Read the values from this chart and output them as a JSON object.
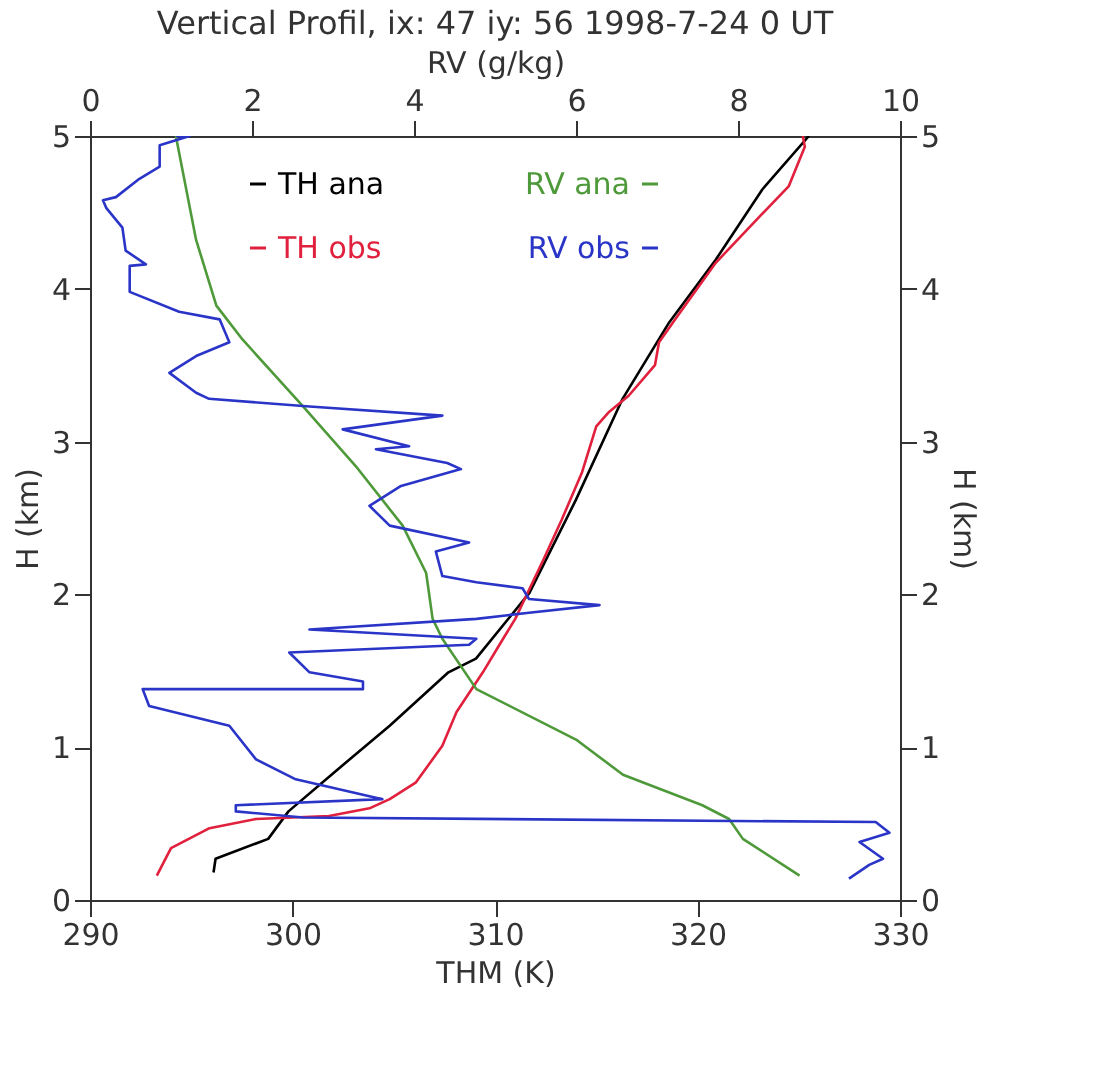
{
  "chart_data": {
    "type": "line",
    "title": "Vertical Profil, ix: 47 iy: 56   1998-7-24   0 UT",
    "xlabel": "THM (K)",
    "ylabel": "H (km)",
    "x2label": "RV (g/kg)",
    "y2label": "H (km)",
    "xlim": [
      290,
      330
    ],
    "xticks": [
      290,
      300,
      310,
      320,
      330
    ],
    "x2lim": [
      0,
      10
    ],
    "x2ticks": [
      0,
      2,
      4,
      6,
      8,
      10
    ],
    "ylim": [
      0,
      5
    ],
    "yticks": [
      0,
      1,
      2,
      3,
      4,
      5
    ],
    "y2lim": [
      0,
      5
    ],
    "y2ticks": [
      0,
      1,
      2,
      3,
      4,
      5
    ],
    "grid": false,
    "legend": "top",
    "marker": "none",
    "line_style": "solid",
    "series": [
      {
        "name": "TH ana",
        "color": "#000000",
        "x": [
          296.1,
          296.2,
          298.8,
          299.8,
          302.1,
          304.8,
          307.7,
          309.06,
          311.7,
          314.0,
          316.3,
          318.6,
          320.9,
          323.2,
          325.5
        ],
        "values": [
          0.18,
          0.27,
          0.4,
          0.58,
          0.84,
          1.14,
          1.49,
          1.58,
          2.01,
          2.62,
          3.28,
          3.78,
          4.19,
          4.65,
          5.0
        ]
      },
      {
        "name": "TH obs",
        "color": "#e0203c",
        "x": [
          293.3,
          294.0,
          295.9,
          298.2,
          301.8,
          303.8,
          304.8,
          306.1,
          307.4,
          308.1,
          309.4,
          310.4,
          311.0,
          312.4,
          313.3,
          314.3,
          315.0,
          315.6,
          316.6,
          317.9,
          318.1,
          318.9,
          320.9,
          322.9,
          324.5,
          325.3,
          325.2
        ],
        "values": [
          0.16,
          0.34,
          0.47,
          0.53,
          0.55,
          0.6,
          0.66,
          0.77,
          1.01,
          1.23,
          1.49,
          1.71,
          1.84,
          2.23,
          2.49,
          2.8,
          3.1,
          3.19,
          3.3,
          3.5,
          3.65,
          3.8,
          4.17,
          4.45,
          4.67,
          4.93,
          5.0
        ]
      },
      {
        "name": "RV ana",
        "color": "#4e9a3a",
        "axis": "x2",
        "x": [
          1.06,
          1.31,
          1.56,
          1.88,
          2.63,
          3.28,
          3.86,
          4.15,
          4.23,
          4.35,
          4.77,
          6.0,
          6.58,
          7.56,
          7.89,
          8.06,
          8.76
        ],
        "values": [
          5.0,
          4.32,
          3.89,
          3.67,
          3.23,
          2.84,
          2.45,
          2.14,
          1.84,
          1.71,
          1.38,
          1.05,
          0.82,
          0.62,
          0.53,
          0.4,
          0.16
        ]
      },
      {
        "name": "RV obs",
        "color": "#2a35c8",
        "axis": "x2",
        "x": [
          1.06,
          1.23,
          0.86,
          0.86,
          0.61,
          0.32,
          0.16,
          0.2,
          0.4,
          0.44,
          0.69,
          0.49,
          0.49,
          1.1,
          1.6,
          1.72,
          1.31,
          0.98,
          1.31,
          1.47,
          2.71,
          4.35,
          3.12,
          3.94,
          3.53,
          4.41,
          4.58,
          3.84,
          3.45,
          3.7,
          4.68,
          4.27,
          4.35,
          4.77,
          5.34,
          5.42,
          6.29,
          5.42,
          4.77,
          2.71,
          4.77,
          4.68,
          2.46,
          2.71,
          3.37,
          3.37,
          0.65,
          0.73,
          1.72,
          2.05,
          2.54,
          3.61,
          1.8,
          1.8,
          2.63,
          9.7,
          9.87,
          9.5,
          9.79,
          9.62,
          9.37
        ],
        "values": [
          5.0,
          5.0,
          4.94,
          4.8,
          4.72,
          4.6,
          4.58,
          4.53,
          4.4,
          4.25,
          4.16,
          4.15,
          3.98,
          3.85,
          3.8,
          3.65,
          3.56,
          3.45,
          3.32,
          3.28,
          3.23,
          3.17,
          3.08,
          2.97,
          2.95,
          2.86,
          2.82,
          2.71,
          2.58,
          2.45,
          2.34,
          2.28,
          2.12,
          2.08,
          2.04,
          1.97,
          1.93,
          1.88,
          1.84,
          1.77,
          1.71,
          1.67,
          1.62,
          1.49,
          1.43,
          1.38,
          1.38,
          1.27,
          1.14,
          0.92,
          0.79,
          0.66,
          0.62,
          0.58,
          0.54,
          0.51,
          0.44,
          0.38,
          0.27,
          0.23,
          0.14
        ]
      }
    ]
  }
}
